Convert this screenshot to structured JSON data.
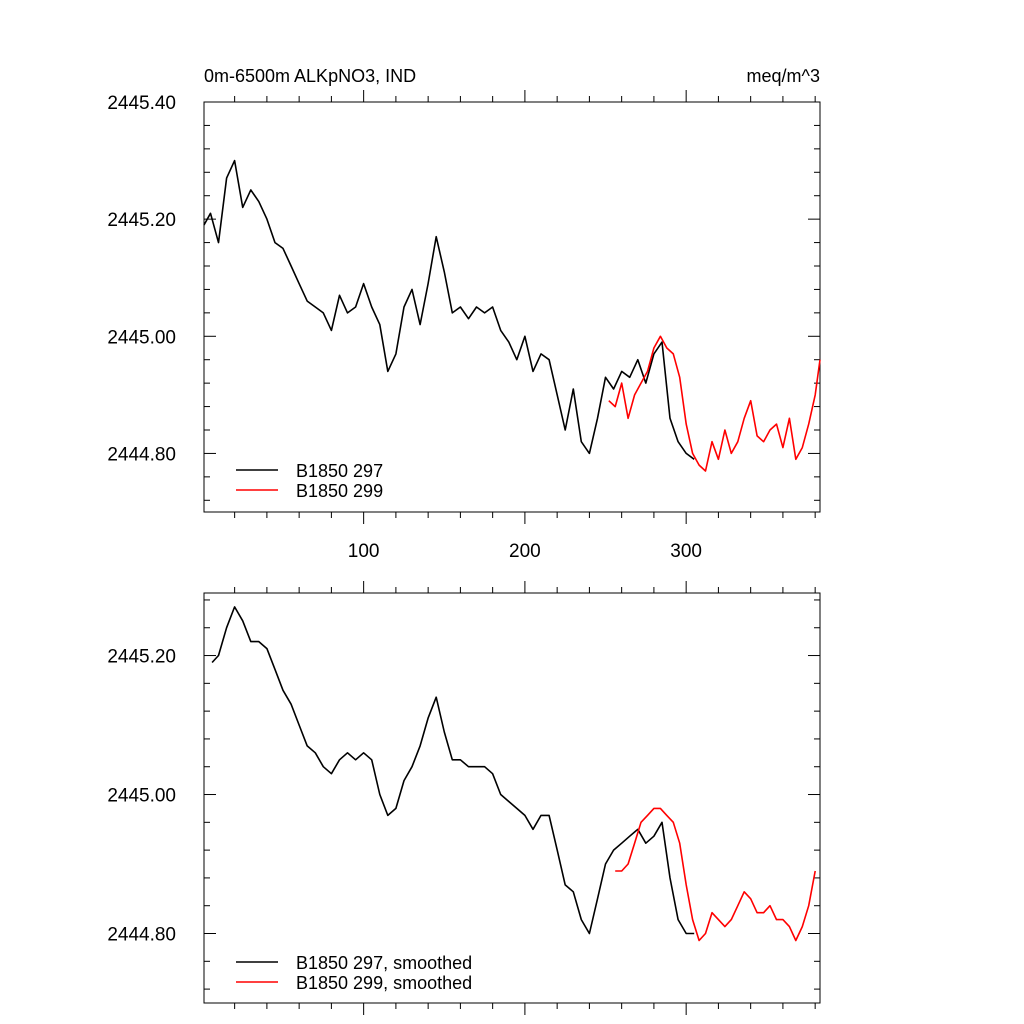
{
  "chart_data": [
    {
      "type": "line",
      "title": "0m-6500m ALKpNO3, IND",
      "title_right": "meq/m^3",
      "xlim": [
        1,
        383
      ],
      "ylim": [
        2444.7,
        2445.4
      ],
      "xticks": [
        100,
        200,
        300
      ],
      "xtick_labels": [
        "100",
        "200",
        "300"
      ],
      "yticks": [
        2444.8,
        2445.0,
        2445.2,
        2445.4
      ],
      "ytick_labels": [
        "2444.80",
        "2445.00",
        "2445.20",
        "2445.40"
      ],
      "grid": false,
      "legend_position": "bottom-left",
      "series": [
        {
          "name": "B1850 297",
          "color": "#000000",
          "x": [
            1,
            5,
            10,
            15,
            20,
            25,
            30,
            35,
            40,
            45,
            50,
            55,
            60,
            65,
            70,
            75,
            80,
            85,
            90,
            95,
            100,
            105,
            110,
            115,
            120,
            125,
            130,
            135,
            140,
            145,
            150,
            155,
            160,
            165,
            170,
            175,
            180,
            185,
            190,
            195,
            200,
            205,
            210,
            215,
            220,
            225,
            230,
            235,
            240,
            245,
            250,
            255,
            260,
            265,
            270,
            275,
            280,
            285,
            290,
            295,
            300,
            305
          ],
          "y": [
            2445.19,
            2445.21,
            2445.16,
            2445.27,
            2445.3,
            2445.22,
            2445.25,
            2445.23,
            2445.2,
            2445.16,
            2445.15,
            2445.12,
            2445.09,
            2445.06,
            2445.05,
            2445.04,
            2445.01,
            2445.07,
            2445.04,
            2445.05,
            2445.09,
            2445.05,
            2445.02,
            2444.94,
            2444.97,
            2445.05,
            2445.08,
            2445.02,
            2445.09,
            2445.17,
            2445.11,
            2445.04,
            2445.05,
            2445.03,
            2445.05,
            2445.04,
            2445.05,
            2445.01,
            2444.99,
            2444.96,
            2445.0,
            2444.94,
            2444.97,
            2444.96,
            2444.9,
            2444.84,
            2444.91,
            2444.82,
            2444.8,
            2444.86,
            2444.93,
            2444.91,
            2444.94,
            2444.93,
            2444.96,
            2444.92,
            2444.97,
            2444.99,
            2444.86,
            2444.82,
            2444.8,
            2444.79
          ]
        },
        {
          "name": "B1850 299",
          "color": "#ff0000",
          "x": [
            252,
            256,
            260,
            264,
            268,
            272,
            276,
            280,
            284,
            288,
            292,
            296,
            300,
            304,
            308,
            312,
            316,
            320,
            324,
            328,
            332,
            336,
            340,
            344,
            348,
            352,
            356,
            360,
            364,
            368,
            372,
            376,
            380,
            383
          ],
          "y": [
            2444.89,
            2444.88,
            2444.92,
            2444.86,
            2444.9,
            2444.92,
            2444.94,
            2444.98,
            2445.0,
            2444.98,
            2444.97,
            2444.93,
            2444.85,
            2444.8,
            2444.78,
            2444.77,
            2444.82,
            2444.79,
            2444.84,
            2444.8,
            2444.82,
            2444.86,
            2444.89,
            2444.83,
            2444.82,
            2444.84,
            2444.85,
            2444.81,
            2444.86,
            2444.79,
            2444.81,
            2444.85,
            2444.9,
            2444.96
          ]
        }
      ]
    },
    {
      "type": "line",
      "title": "",
      "xlim": [
        1,
        383
      ],
      "ylim": [
        2444.7,
        2445.29
      ],
      "xticks": [
        100,
        200,
        300
      ],
      "xtick_labels": [],
      "yticks": [
        2444.8,
        2445.0,
        2445.2
      ],
      "ytick_labels": [
        "2444.80",
        "2445.00",
        "2445.20"
      ],
      "grid": false,
      "legend_position": "bottom-left",
      "series": [
        {
          "name": "B1850 297, smoothed",
          "color": "#000000",
          "x": [
            6,
            10,
            15,
            20,
            25,
            30,
            35,
            40,
            45,
            50,
            55,
            60,
            65,
            70,
            75,
            80,
            85,
            90,
            95,
            100,
            105,
            110,
            115,
            120,
            125,
            130,
            135,
            140,
            145,
            150,
            155,
            160,
            165,
            170,
            175,
            180,
            185,
            190,
            195,
            200,
            205,
            210,
            215,
            220,
            225,
            230,
            235,
            240,
            245,
            250,
            255,
            260,
            265,
            270,
            275,
            280,
            285,
            290,
            295,
            300,
            305
          ],
          "y": [
            2445.19,
            2445.2,
            2445.24,
            2445.27,
            2445.25,
            2445.22,
            2445.22,
            2445.21,
            2445.18,
            2445.15,
            2445.13,
            2445.1,
            2445.07,
            2445.06,
            2445.04,
            2445.03,
            2445.05,
            2445.06,
            2445.05,
            2445.06,
            2445.05,
            2445.0,
            2444.97,
            2444.98,
            2445.02,
            2445.04,
            2445.07,
            2445.11,
            2445.14,
            2445.09,
            2445.05,
            2445.05,
            2445.04,
            2445.04,
            2445.04,
            2445.03,
            2445.0,
            2444.99,
            2444.98,
            2444.97,
            2444.95,
            2444.97,
            2444.97,
            2444.92,
            2444.87,
            2444.86,
            2444.82,
            2444.8,
            2444.85,
            2444.9,
            2444.92,
            2444.93,
            2444.94,
            2444.95,
            2444.93,
            2444.94,
            2444.96,
            2444.88,
            2444.82,
            2444.8,
            2444.8
          ]
        },
        {
          "name": "B1850 299, smoothed",
          "color": "#ff0000",
          "x": [
            256,
            260,
            264,
            268,
            272,
            276,
            280,
            284,
            288,
            292,
            296,
            300,
            304,
            308,
            312,
            316,
            320,
            324,
            328,
            332,
            336,
            340,
            344,
            348,
            352,
            356,
            360,
            364,
            368,
            372,
            376,
            380
          ],
          "y": [
            2444.89,
            2444.89,
            2444.9,
            2444.93,
            2444.96,
            2444.97,
            2444.98,
            2444.98,
            2444.97,
            2444.96,
            2444.93,
            2444.87,
            2444.82,
            2444.79,
            2444.8,
            2444.83,
            2444.82,
            2444.81,
            2444.82,
            2444.84,
            2444.86,
            2444.85,
            2444.83,
            2444.83,
            2444.84,
            2444.82,
            2444.82,
            2444.81,
            2444.79,
            2444.81,
            2444.84,
            2444.89
          ]
        }
      ]
    }
  ]
}
